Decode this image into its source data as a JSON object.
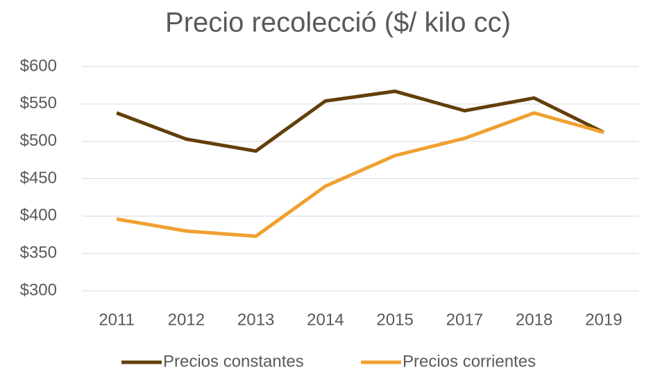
{
  "chart_data": {
    "type": "line",
    "title": "Precio recolecció ($/ kilo cc)",
    "categories": [
      "2011",
      "2012",
      "2013",
      "2014",
      "2015",
      "2017",
      "2018",
      "2019"
    ],
    "series": [
      {
        "name": "Precios constantes",
        "color": "#633f0a",
        "values": [
          538,
          503,
          487,
          554,
          567,
          541,
          558,
          512
        ]
      },
      {
        "name": "Precios corrientes",
        "color": "#f0a030",
        "values": [
          396,
          380,
          373,
          440,
          481,
          504,
          538,
          512
        ]
      }
    ],
    "ylim": [
      300,
      600
    ],
    "yticks": [
      {
        "value": 300,
        "label": "$300"
      },
      {
        "value": 350,
        "label": "$350"
      },
      {
        "value": 400,
        "label": "$400"
      },
      {
        "value": 450,
        "label": "$450"
      },
      {
        "value": 500,
        "label": "$500"
      },
      {
        "value": 550,
        "label": "$550"
      },
      {
        "value": 600,
        "label": "$600"
      }
    ],
    "grid": true,
    "legend": "bottom"
  }
}
